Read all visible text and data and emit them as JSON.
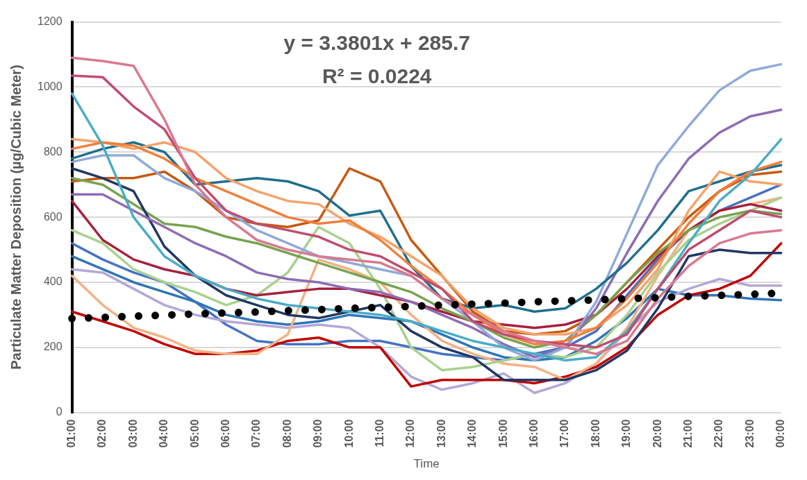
{
  "chart_data": {
    "type": "line",
    "xlabel": "Time",
    "ylabel": "Particulate Matter Deposition (µg/Cubic Meter)",
    "annotations": [
      "y = 3.3801x + 285.7",
      "R² = 0.0224"
    ],
    "categories": [
      "01:00",
      "02:00",
      "03:00",
      "04:00",
      "05:00",
      "06:00",
      "07:00",
      "08:00",
      "09:00",
      "10:00",
      "11:00",
      "12:00",
      "13:00",
      "14:00",
      "15:00",
      "16:00",
      "17:00",
      "18:00",
      "19:00",
      "20:00",
      "21:00",
      "22:00",
      "23:00",
      "00:00"
    ],
    "ylim": [
      0,
      1200
    ],
    "yticks": [
      0,
      200,
      400,
      600,
      800,
      1000,
      1200
    ],
    "grid": "y",
    "legend": false,
    "marker": "none",
    "line_style": "solid",
    "series": [
      {
        "color": "#d9798e",
        "values": [
          1090,
          1080,
          1065,
          900,
          700,
          600,
          530,
          500,
          480,
          470,
          460,
          420,
          350,
          300,
          250,
          220,
          200,
          180,
          220,
          350,
          450,
          520,
          550,
          560
        ]
      },
      {
        "color": "#c04d6e",
        "values": [
          1035,
          1030,
          940,
          870,
          720,
          620,
          580,
          560,
          540,
          500,
          480,
          430,
          380,
          280,
          240,
          220,
          210,
          200,
          240,
          380,
          500,
          560,
          620,
          600
        ]
      },
      {
        "color": "#4bacc6",
        "values": [
          980,
          820,
          600,
          480,
          420,
          380,
          350,
          330,
          320,
          310,
          300,
          280,
          250,
          220,
          200,
          180,
          160,
          170,
          250,
          380,
          520,
          650,
          730,
          840
        ]
      },
      {
        "color": "#f07f3c",
        "values": [
          810,
          830,
          820,
          780,
          720,
          680,
          640,
          600,
          580,
          590,
          530,
          450,
          380,
          300,
          240,
          210,
          220,
          260,
          350,
          460,
          580,
          680,
          740,
          770
        ]
      },
      {
        "color": "#f5a26b",
        "values": [
          840,
          830,
          810,
          830,
          800,
          720,
          680,
          650,
          640,
          580,
          540,
          480,
          420,
          320,
          260,
          240,
          240,
          260,
          330,
          440,
          620,
          740,
          710,
          700
        ]
      },
      {
        "color": "#1f6e8c",
        "values": [
          780,
          810,
          830,
          800,
          700,
          710,
          720,
          710,
          680,
          605,
          620,
          450,
          350,
          320,
          330,
          310,
          320,
          380,
          460,
          560,
          680,
          710,
          740,
          760
        ]
      },
      {
        "color": "#8eaadb",
        "values": [
          770,
          790,
          790,
          720,
          680,
          620,
          560,
          520,
          480,
          460,
          440,
          420,
          350,
          280,
          200,
          160,
          200,
          340,
          550,
          760,
          880,
          990,
          1050,
          1070
        ]
      },
      {
        "color": "#8e6bb5",
        "values": [
          670,
          670,
          620,
          570,
          520,
          480,
          430,
          410,
          400,
          380,
          370,
          340,
          300,
          260,
          210,
          170,
          200,
          320,
          490,
          650,
          780,
          860,
          910,
          930
        ]
      },
      {
        "color": "#1f3864",
        "values": [
          750,
          720,
          680,
          510,
          420,
          360,
          330,
          300,
          290,
          310,
          330,
          250,
          200,
          170,
          100,
          100,
          100,
          130,
          190,
          320,
          480,
          500,
          490,
          490
        ]
      },
      {
        "color": "#77a350",
        "values": [
          720,
          700,
          640,
          580,
          570,
          540,
          520,
          490,
          460,
          430,
          400,
          370,
          320,
          280,
          230,
          200,
          220,
          300,
          400,
          490,
          560,
          600,
          620,
          610
        ]
      },
      {
        "color": "#c55a11",
        "values": [
          710,
          720,
          720,
          740,
          680,
          600,
          580,
          570,
          590,
          750,
          710,
          530,
          420,
          310,
          250,
          240,
          250,
          300,
          400,
          500,
          600,
          680,
          730,
          740
        ]
      },
      {
        "color": "#a5213f",
        "values": [
          650,
          530,
          470,
          440,
          420,
          380,
          360,
          370,
          380,
          380,
          360,
          340,
          310,
          280,
          270,
          260,
          270,
          300,
          380,
          480,
          560,
          620,
          640,
          620
        ]
      },
      {
        "color": "#a9d18e",
        "values": [
          560,
          520,
          440,
          400,
          370,
          330,
          360,
          430,
          570,
          520,
          380,
          200,
          130,
          140,
          160,
          180,
          170,
          200,
          300,
          430,
          530,
          580,
          620,
          660
        ]
      },
      {
        "color": "#f4b183",
        "values": [
          420,
          330,
          260,
          230,
          190,
          180,
          180,
          240,
          470,
          440,
          400,
          300,
          220,
          180,
          150,
          140,
          100,
          150,
          260,
          420,
          560,
          620,
          640,
          660
        ]
      },
      {
        "color": "#c00000",
        "values": [
          310,
          280,
          250,
          210,
          180,
          180,
          190,
          220,
          230,
          200,
          200,
          80,
          100,
          100,
          100,
          90,
          110,
          140,
          200,
          300,
          360,
          380,
          420,
          520
        ]
      },
      {
        "color": "#b4a7d6",
        "values": [
          440,
          430,
          380,
          330,
          300,
          280,
          270,
          260,
          270,
          260,
          200,
          110,
          70,
          90,
          120,
          60,
          90,
          150,
          250,
          340,
          380,
          410,
          390,
          390
        ]
      },
      {
        "color": "#2e75b6",
        "values": [
          480,
          440,
          400,
          370,
          340,
          300,
          280,
          270,
          280,
          300,
          290,
          280,
          240,
          200,
          170,
          160,
          170,
          220,
          290,
          380,
          360,
          360,
          350,
          345
        ]
      },
      {
        "color": "#4472c4",
        "values": [
          520,
          470,
          430,
          400,
          340,
          270,
          220,
          210,
          210,
          220,
          220,
          200,
          180,
          170,
          160,
          180,
          200,
          250,
          360,
          470,
          560,
          620,
          660,
          700
        ]
      },
      {
        "color": "#000000",
        "line_style": "dotted",
        "values": [
          289,
          292,
          296,
          299,
          303,
          306,
          309,
          313,
          316,
          320,
          323,
          326,
          330,
          333,
          336,
          340,
          343,
          346,
          350,
          353,
          357,
          360,
          363,
          367
        ]
      }
    ]
  }
}
